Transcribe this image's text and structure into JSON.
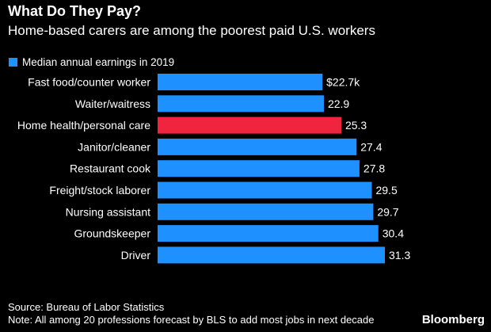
{
  "header": {
    "title": "What Do They Pay?",
    "subtitle": "Home-based carers are among the poorest paid U.S. workers"
  },
  "footer": {
    "source": "Source: Bureau of Labor Statistics",
    "note": "Note: All among 20 professions forecast by BLS to add most jobs in next decade",
    "brand": "Bloomberg"
  },
  "colors": {
    "background": "#000000",
    "bar": "#1e90ff",
    "highlight": "#f0243f",
    "text": "#ffffff"
  },
  "chart_data": {
    "type": "bar",
    "orientation": "horizontal",
    "categories": [
      "Fast food/counter worker",
      "Waiter/waitress",
      "Home health/personal care",
      "Janitor/cleaner",
      "Restaurant cook",
      "Freight/stock laborer",
      "Nursing assistant",
      "Groundskeeper",
      "Driver"
    ],
    "series": [
      {
        "name": "Median annual earnings in 2019",
        "values": [
          22.7,
          22.9,
          25.3,
          27.4,
          27.8,
          29.5,
          29.7,
          30.4,
          31.3
        ]
      }
    ],
    "value_labels": [
      "$22.7k",
      "22.9",
      "25.3",
      "27.4",
      "27.8",
      "29.5",
      "29.7",
      "30.4",
      "31.3"
    ],
    "highlight_index": 2,
    "xlim": [
      0,
      31.3
    ],
    "grid": false,
    "legend": "top-left"
  }
}
